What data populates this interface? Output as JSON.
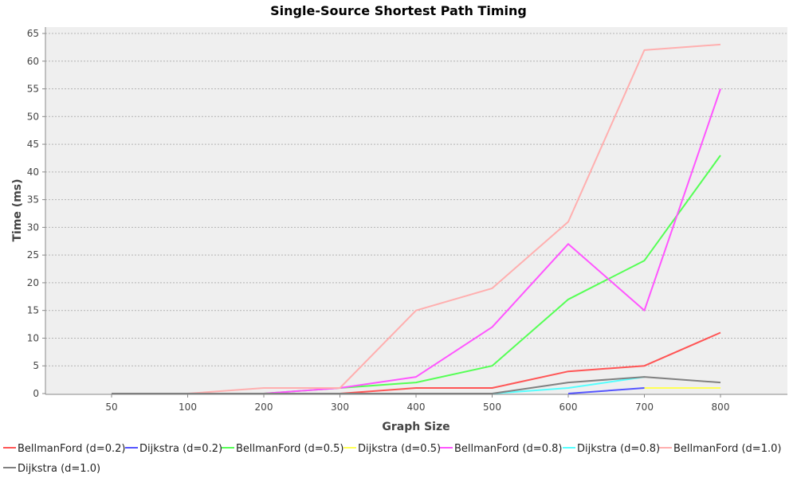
{
  "chart_data": {
    "type": "line",
    "title": "Single-Source Shortest Path Timing",
    "xlabel": "Graph Size",
    "ylabel": "Time (ms)",
    "categories": [
      "50",
      "100",
      "200",
      "300",
      "400",
      "500",
      "600",
      "700",
      "800"
    ],
    "ylim": [
      0,
      65
    ],
    "yticks": [
      0,
      5,
      10,
      15,
      20,
      25,
      30,
      35,
      40,
      45,
      50,
      55,
      60,
      65
    ],
    "grid": true,
    "legend_position": "bottom",
    "series": [
      {
        "name": "BellmanFord (d=0.2)",
        "color": "#ff5555",
        "values": [
          null,
          null,
          null,
          0,
          1,
          1,
          4,
          5,
          11
        ]
      },
      {
        "name": "Dijkstra (d=0.2)",
        "color": "#5555ff",
        "values": [
          null,
          null,
          null,
          null,
          null,
          null,
          0,
          1,
          1
        ]
      },
      {
        "name": "BellmanFord (d=0.5)",
        "color": "#55ff55",
        "values": [
          null,
          null,
          0,
          1,
          2,
          5,
          17,
          24,
          43
        ]
      },
      {
        "name": "Dijkstra (d=0.5)",
        "color": "#ffff55",
        "values": [
          null,
          null,
          null,
          null,
          null,
          null,
          null,
          1,
          1
        ]
      },
      {
        "name": "BellmanFord (d=0.8)",
        "color": "#ff55ff",
        "values": [
          null,
          null,
          0,
          1,
          3,
          12,
          27,
          15,
          55
        ]
      },
      {
        "name": "Dijkstra (d=0.8)",
        "color": "#55ffff",
        "values": [
          null,
          null,
          null,
          null,
          null,
          0,
          1,
          3,
          null
        ]
      },
      {
        "name": "BellmanFord (d=1.0)",
        "color": "#ffafaf",
        "values": [
          null,
          0,
          1,
          1,
          15,
          19,
          31,
          62,
          63
        ]
      },
      {
        "name": "Dijkstra (d=1.0)",
        "color": "#808080",
        "values": [
          0,
          0,
          0,
          0,
          0,
          0,
          2,
          3,
          2
        ]
      }
    ]
  }
}
